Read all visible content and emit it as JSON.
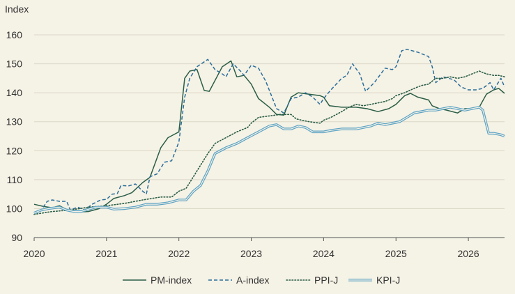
{
  "chart_data": {
    "type": "line",
    "ylabel": "Index",
    "ylim": [
      90,
      160
    ],
    "xlim": [
      2020,
      2026.5
    ],
    "yticks": [
      "90",
      "100",
      "110",
      "120",
      "130",
      "140",
      "150",
      "160"
    ],
    "xticks": [
      "2020",
      "2021",
      "2022",
      "2023",
      "2024",
      "2025",
      "2026"
    ],
    "grid": true,
    "legend_position": "bottom",
    "series": [
      {
        "name": "PM-index",
        "color": "#2a5e46",
        "style": "solid",
        "points": [
          [
            2020.0,
            101.5
          ],
          [
            2020.12,
            100.8
          ],
          [
            2020.25,
            100.3
          ],
          [
            2020.35,
            101.0
          ],
          [
            2020.5,
            99.0
          ],
          [
            2020.6,
            98.8
          ],
          [
            2020.75,
            99.0
          ],
          [
            2020.9,
            100.0
          ],
          [
            2021.0,
            101.5
          ],
          [
            2021.1,
            103.5
          ],
          [
            2021.25,
            104.5
          ],
          [
            2021.35,
            105.5
          ],
          [
            2021.5,
            109.0
          ],
          [
            2021.6,
            110.8
          ],
          [
            2021.75,
            121.0
          ],
          [
            2021.85,
            124.5
          ],
          [
            2022.0,
            126.5
          ],
          [
            2022.08,
            145.0
          ],
          [
            2022.15,
            147.5
          ],
          [
            2022.25,
            148.0
          ],
          [
            2022.35,
            140.8
          ],
          [
            2022.42,
            140.5
          ],
          [
            2022.6,
            149.0
          ],
          [
            2022.72,
            151.0
          ],
          [
            2022.8,
            145.5
          ],
          [
            2022.9,
            146.0
          ],
          [
            2023.0,
            143.0
          ],
          [
            2023.1,
            138.0
          ],
          [
            2023.25,
            135.0
          ],
          [
            2023.35,
            132.5
          ],
          [
            2023.45,
            132.3
          ],
          [
            2023.55,
            138.5
          ],
          [
            2023.65,
            140.0
          ],
          [
            2023.8,
            139.5
          ],
          [
            2023.95,
            139.0
          ],
          [
            2024.0,
            138.5
          ],
          [
            2024.08,
            135.5
          ],
          [
            2024.25,
            135.0
          ],
          [
            2024.45,
            135.0
          ],
          [
            2024.6,
            134.5
          ],
          [
            2024.75,
            133.5
          ],
          [
            2024.9,
            134.5
          ],
          [
            2025.0,
            136.0
          ],
          [
            2025.12,
            139.0
          ],
          [
            2025.2,
            139.8
          ],
          [
            2025.3,
            138.5
          ],
          [
            2025.45,
            137.5
          ],
          [
            2025.5,
            135.5
          ],
          [
            2025.6,
            134.5
          ],
          [
            2025.7,
            134.0
          ],
          [
            2025.85,
            133.0
          ],
          [
            2025.95,
            134.5
          ],
          [
            2026.05,
            134.5
          ],
          [
            2026.15,
            135.0
          ],
          [
            2026.25,
            139.5
          ],
          [
            2026.35,
            141.0
          ],
          [
            2026.42,
            141.5
          ],
          [
            2026.5,
            139.8
          ]
        ]
      },
      {
        "name": "A-index",
        "color": "#2a6e9a",
        "style": "dashed",
        "points": [
          [
            2020.0,
            98.5
          ],
          [
            2020.1,
            99.5
          ],
          [
            2020.18,
            102.5
          ],
          [
            2020.25,
            103.0
          ],
          [
            2020.35,
            102.5
          ],
          [
            2020.45,
            102.5
          ],
          [
            2020.5,
            99.5
          ],
          [
            2020.6,
            100.5
          ],
          [
            2020.7,
            99.5
          ],
          [
            2020.8,
            101.5
          ],
          [
            2020.92,
            103.0
          ],
          [
            2021.0,
            103.2
          ],
          [
            2021.08,
            105.0
          ],
          [
            2021.15,
            105.2
          ],
          [
            2021.2,
            108.0
          ],
          [
            2021.3,
            107.8
          ],
          [
            2021.4,
            108.5
          ],
          [
            2021.5,
            106.0
          ],
          [
            2021.55,
            105.0
          ],
          [
            2021.6,
            111.0
          ],
          [
            2021.7,
            112.0
          ],
          [
            2021.8,
            116.0
          ],
          [
            2021.9,
            116.5
          ],
          [
            2022.0,
            123.0
          ],
          [
            2022.08,
            138.5
          ],
          [
            2022.15,
            145.0
          ],
          [
            2022.25,
            149.0
          ],
          [
            2022.4,
            151.5
          ],
          [
            2022.5,
            148.0
          ],
          [
            2022.6,
            146.5
          ],
          [
            2022.65,
            145.5
          ],
          [
            2022.75,
            150.0
          ],
          [
            2022.85,
            147.5
          ],
          [
            2022.9,
            146.0
          ],
          [
            2023.0,
            149.5
          ],
          [
            2023.1,
            148.5
          ],
          [
            2023.2,
            144.0
          ],
          [
            2023.35,
            134.5
          ],
          [
            2023.45,
            133.0
          ],
          [
            2023.55,
            138.0
          ],
          [
            2023.65,
            138.5
          ],
          [
            2023.75,
            140.0
          ],
          [
            2023.85,
            138.5
          ],
          [
            2023.95,
            136.0
          ],
          [
            2024.0,
            138.0
          ],
          [
            2024.1,
            141.0
          ],
          [
            2024.25,
            145.0
          ],
          [
            2024.32,
            146.0
          ],
          [
            2024.4,
            150.0
          ],
          [
            2024.5,
            146.5
          ],
          [
            2024.58,
            140.5
          ],
          [
            2024.7,
            143.5
          ],
          [
            2024.85,
            148.5
          ],
          [
            2024.95,
            148.0
          ],
          [
            2025.0,
            149.0
          ],
          [
            2025.08,
            154.5
          ],
          [
            2025.15,
            155.0
          ],
          [
            2025.3,
            154.0
          ],
          [
            2025.45,
            152.5
          ],
          [
            2025.5,
            149.0
          ],
          [
            2025.55,
            143.5
          ],
          [
            2025.65,
            145.5
          ],
          [
            2025.8,
            144.5
          ],
          [
            2025.9,
            142.0
          ],
          [
            2026.0,
            141.0
          ],
          [
            2026.1,
            141.0
          ],
          [
            2026.2,
            141.5
          ],
          [
            2026.3,
            143.5
          ],
          [
            2026.35,
            141.0
          ],
          [
            2026.45,
            145.0
          ],
          [
            2026.5,
            142.0
          ]
        ]
      },
      {
        "name": "PPI-J",
        "color": "#2a5e46",
        "style": "dotted",
        "points": [
          [
            2020.0,
            98.0
          ],
          [
            2020.25,
            99.0
          ],
          [
            2020.5,
            99.5
          ],
          [
            2020.75,
            100.5
          ],
          [
            2021.0,
            101.0
          ],
          [
            2021.25,
            101.8
          ],
          [
            2021.5,
            103.0
          ],
          [
            2021.75,
            104.0
          ],
          [
            2021.9,
            104.0
          ],
          [
            2022.0,
            106.0
          ],
          [
            2022.1,
            107.0
          ],
          [
            2022.2,
            111.0
          ],
          [
            2022.3,
            115.0
          ],
          [
            2022.4,
            119.0
          ],
          [
            2022.5,
            122.5
          ],
          [
            2022.65,
            124.5
          ],
          [
            2022.8,
            126.5
          ],
          [
            2022.95,
            128.0
          ],
          [
            2023.0,
            129.5
          ],
          [
            2023.1,
            131.5
          ],
          [
            2023.25,
            132.0
          ],
          [
            2023.4,
            132.5
          ],
          [
            2023.55,
            132.5
          ],
          [
            2023.62,
            131.0
          ],
          [
            2023.7,
            130.5
          ],
          [
            2023.8,
            130.0
          ],
          [
            2023.95,
            129.5
          ],
          [
            2024.0,
            130.5
          ],
          [
            2024.1,
            131.5
          ],
          [
            2024.25,
            133.5
          ],
          [
            2024.35,
            135.0
          ],
          [
            2024.45,
            136.0
          ],
          [
            2024.55,
            135.5
          ],
          [
            2024.65,
            136.0
          ],
          [
            2024.75,
            136.5
          ],
          [
            2024.85,
            137.0
          ],
          [
            2024.95,
            138.0
          ],
          [
            2025.0,
            139.0
          ],
          [
            2025.12,
            140.0
          ],
          [
            2025.25,
            141.5
          ],
          [
            2025.35,
            142.5
          ],
          [
            2025.45,
            143.0
          ],
          [
            2025.55,
            145.0
          ],
          [
            2025.65,
            145.0
          ],
          [
            2025.75,
            145.5
          ],
          [
            2025.85,
            145.0
          ],
          [
            2025.95,
            145.5
          ],
          [
            2026.05,
            146.5
          ],
          [
            2026.15,
            147.5
          ],
          [
            2026.25,
            146.5
          ],
          [
            2026.35,
            146.0
          ],
          [
            2026.42,
            146.0
          ],
          [
            2026.5,
            145.5
          ]
        ]
      },
      {
        "name": "KPI-J",
        "color": "#5ba3c4",
        "style": "double",
        "points": [
          [
            2020.0,
            98.5
          ],
          [
            2020.1,
            99.5
          ],
          [
            2020.2,
            100.0
          ],
          [
            2020.35,
            100.5
          ],
          [
            2020.45,
            99.5
          ],
          [
            2020.55,
            99.0
          ],
          [
            2020.65,
            99.0
          ],
          [
            2020.75,
            99.8
          ],
          [
            2020.85,
            100.5
          ],
          [
            2021.0,
            100.5
          ],
          [
            2021.1,
            99.8
          ],
          [
            2021.25,
            100.0
          ],
          [
            2021.4,
            100.5
          ],
          [
            2021.55,
            101.5
          ],
          [
            2021.7,
            101.5
          ],
          [
            2021.85,
            102.0
          ],
          [
            2022.0,
            103.0
          ],
          [
            2022.1,
            103.0
          ],
          [
            2022.2,
            106.0
          ],
          [
            2022.3,
            108.0
          ],
          [
            2022.4,
            113.0
          ],
          [
            2022.5,
            119.0
          ],
          [
            2022.65,
            121.0
          ],
          [
            2022.8,
            122.5
          ],
          [
            2022.95,
            124.5
          ],
          [
            2023.1,
            126.5
          ],
          [
            2023.25,
            128.5
          ],
          [
            2023.35,
            129.0
          ],
          [
            2023.45,
            127.5
          ],
          [
            2023.55,
            127.5
          ],
          [
            2023.65,
            128.5
          ],
          [
            2023.75,
            128.0
          ],
          [
            2023.85,
            126.5
          ],
          [
            2024.0,
            126.5
          ],
          [
            2024.1,
            127.0
          ],
          [
            2024.25,
            127.5
          ],
          [
            2024.35,
            127.5
          ],
          [
            2024.45,
            127.5
          ],
          [
            2024.55,
            128.0
          ],
          [
            2024.65,
            128.5
          ],
          [
            2024.75,
            129.5
          ],
          [
            2024.85,
            129.0
          ],
          [
            2024.95,
            129.5
          ],
          [
            2025.05,
            130.0
          ],
          [
            2025.15,
            131.5
          ],
          [
            2025.25,
            133.0
          ],
          [
            2025.35,
            133.5
          ],
          [
            2025.45,
            134.0
          ],
          [
            2025.55,
            134.0
          ],
          [
            2025.65,
            134.5
          ],
          [
            2025.75,
            135.0
          ],
          [
            2025.85,
            134.5
          ],
          [
            2025.95,
            134.0
          ],
          [
            2026.05,
            134.5
          ],
          [
            2026.15,
            135.0
          ],
          [
            2026.2,
            134.0
          ],
          [
            2026.28,
            126.0
          ],
          [
            2026.35,
            126.0
          ],
          [
            2026.45,
            125.5
          ],
          [
            2026.5,
            125.0
          ]
        ]
      }
    ]
  }
}
